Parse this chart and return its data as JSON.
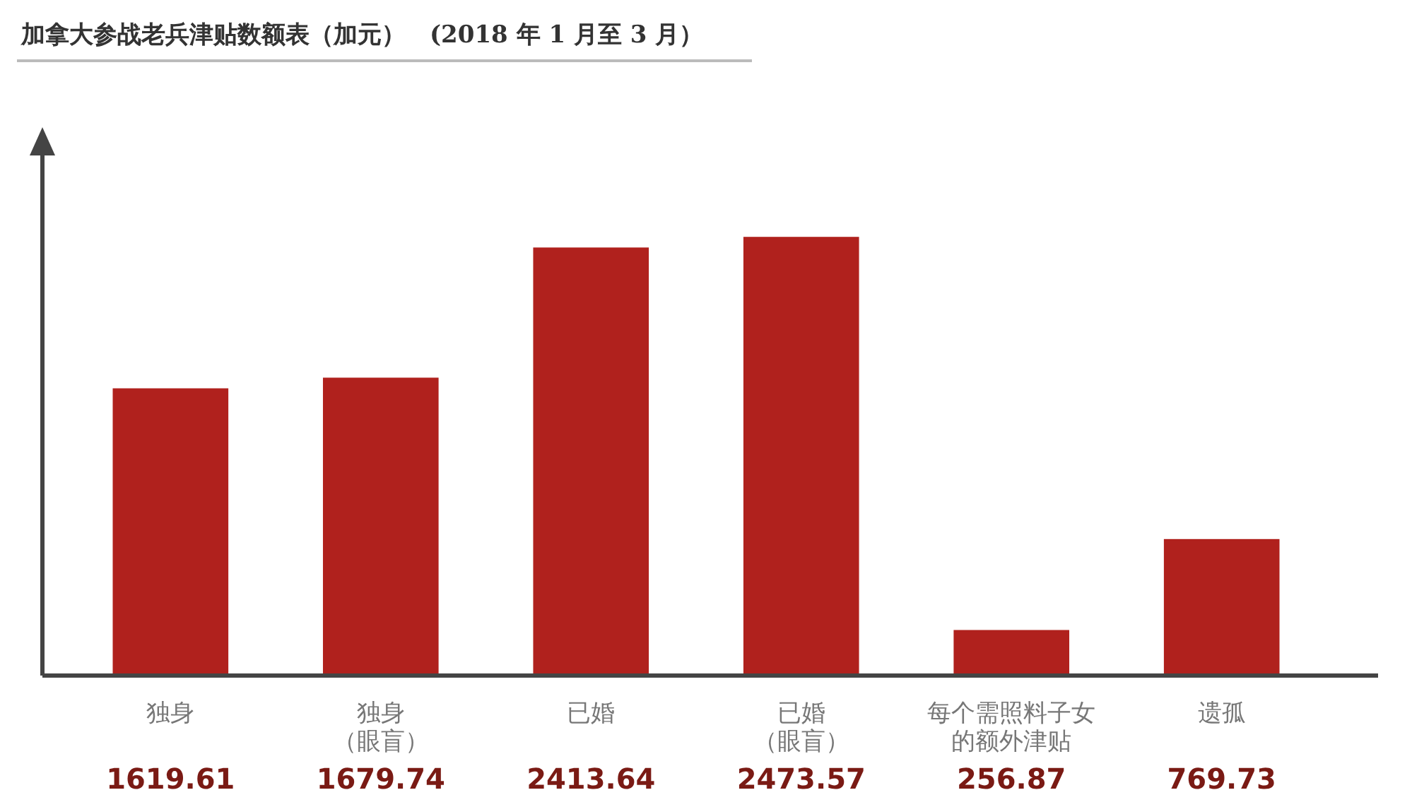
{
  "chart_data": {
    "type": "bar",
    "title": "加拿大参战老兵津贴数额表（加元）　(2018 年 1 月至 3 月）",
    "categories": [
      "独身",
      "独身（眼盲）",
      "已婚",
      "已婚（眼盲）",
      "每个需照料子女的额外津贴",
      "遗孤"
    ],
    "values": [
      1619.61,
      1679.74,
      2413.64,
      2473.57,
      256.87,
      769.73
    ],
    "color": "#b0211d",
    "data_labels": true
  }
}
